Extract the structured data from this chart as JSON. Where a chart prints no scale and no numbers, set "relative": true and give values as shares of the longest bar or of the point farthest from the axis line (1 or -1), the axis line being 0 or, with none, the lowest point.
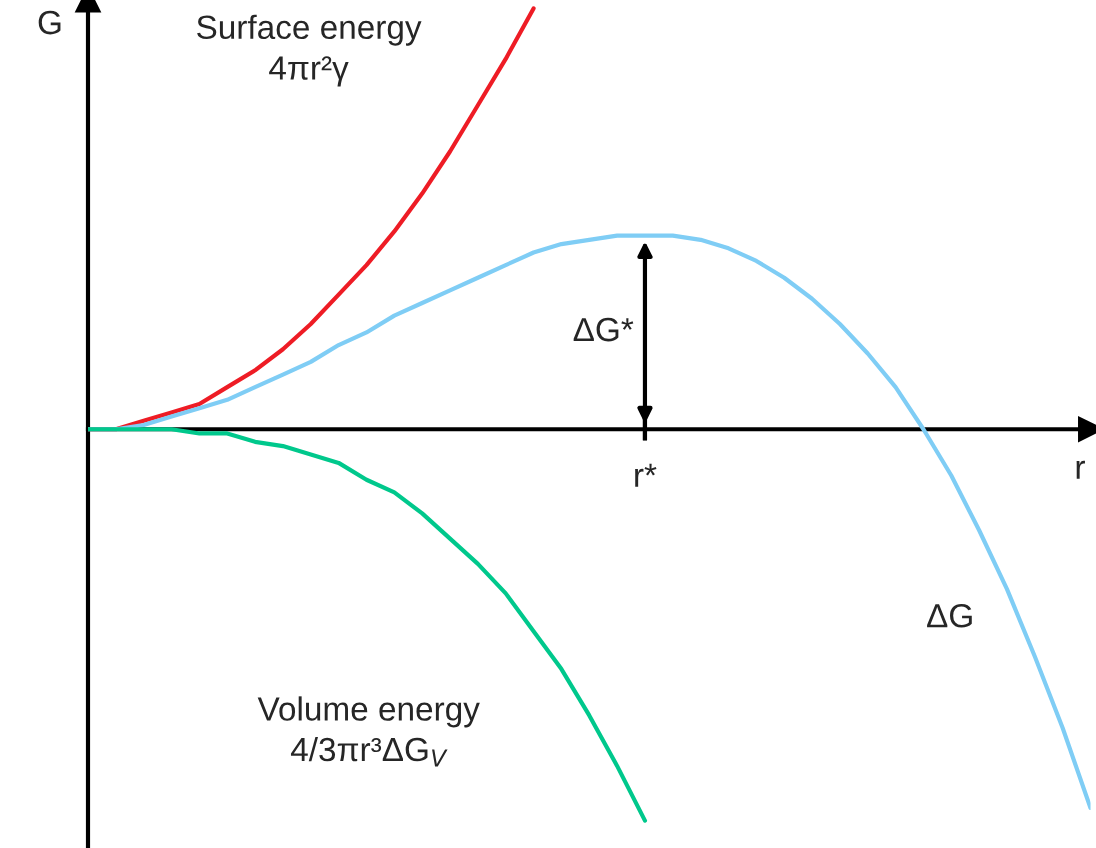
{
  "chart_data": {
    "type": "line",
    "relative": true,
    "xlabel": "r",
    "ylabel": "G",
    "grid": false,
    "legend": false,
    "marker": "none",
    "line_style": "solid",
    "categories": [
      null,
      null,
      null,
      null,
      null,
      null,
      null,
      null,
      null,
      null,
      null,
      null,
      null,
      null,
      null,
      null,
      null,
      null,
      null,
      null,
      null,
      null,
      null,
      null,
      null,
      null,
      null,
      null,
      null,
      null,
      null,
      null,
      null,
      null,
      null,
      null,
      null
    ],
    "series": [
      {
        "name": "Surface energy\n4πr²γ",
        "color": "#ee1c25",
        "values": [
          0,
          0,
          0.02,
          0.04,
          0.06,
          0.1,
          0.14,
          0.19,
          0.25,
          0.32,
          0.39,
          0.47,
          0.56,
          0.66,
          0.77,
          0.88,
          1,
          null,
          null,
          null,
          null,
          null,
          null,
          null,
          null,
          null,
          null,
          null,
          null,
          null,
          null,
          null,
          null,
          null,
          null,
          null,
          null
        ]
      },
      {
        "name": "ΔG",
        "color": "#7fcdf5",
        "values": [
          0,
          0,
          0.01,
          0.03,
          0.05,
          0.07,
          0.1,
          0.13,
          0.16,
          0.2,
          0.23,
          0.27,
          0.3,
          0.33,
          0.36,
          0.39,
          0.42,
          0.44,
          0.45,
          0.46,
          0.46,
          0.46,
          0.45,
          0.43,
          0.4,
          0.36,
          0.31,
          0.25,
          0.18,
          0.1,
          0,
          -0.11,
          -0.24,
          -0.38,
          -0.54,
          -0.71,
          -0.9
        ]
      },
      {
        "name": "Volume energy\n4/3πr³ΔG$_{V}$",
        "color": "#00c88c",
        "values": [
          0,
          0,
          0,
          0,
          -0.01,
          -0.01,
          -0.03,
          -0.04,
          -0.06,
          -0.08,
          -0.12,
          -0.15,
          -0.2,
          -0.26,
          -0.32,
          -0.39,
          -0.48,
          -0.57,
          -0.68,
          -0.8,
          -0.93,
          null,
          null,
          null,
          null,
          null,
          null,
          null,
          null,
          null,
          null,
          null,
          null,
          null,
          null,
          null,
          null
        ]
      }
    ],
    "annotations": [
      {
        "text": "ΔG*",
        "y": 0.46
      },
      "r*"
    ]
  }
}
